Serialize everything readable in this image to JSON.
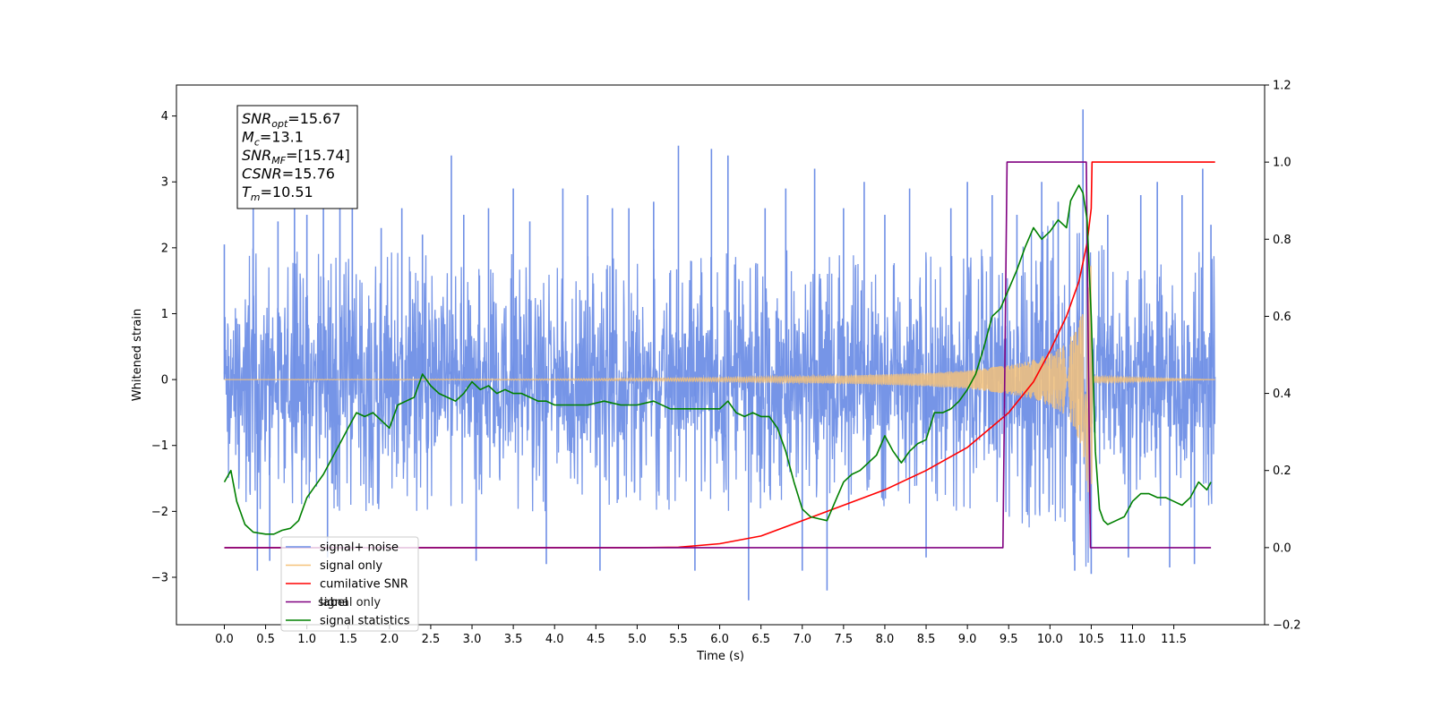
{
  "chart_data": {
    "type": "line",
    "xlabel": "Time (s)",
    "ylabel": "Whitened strain",
    "xlim": [
      -0.58,
      12.6
    ],
    "ylim": [
      -3.72,
      4.47
    ],
    "ylim_right": [
      -0.2,
      1.2
    ],
    "x_ticks": [
      0.0,
      0.5,
      1.0,
      1.5,
      2.0,
      2.5,
      3.0,
      3.5,
      4.0,
      4.5,
      5.0,
      5.5,
      6.0,
      6.5,
      7.0,
      7.5,
      8.0,
      8.5,
      9.0,
      9.5,
      10.0,
      10.5,
      11.0,
      11.5
    ],
    "x_tick_labels": [
      "0.0",
      "0.5",
      "1.0",
      "1.5",
      "2.0",
      "2.5",
      "3.0",
      "3.5",
      "4.0",
      "4.5",
      "5.0",
      "5.5",
      "6.0",
      "6.5",
      "7.0",
      "7.5",
      "8.0",
      "8.5",
      "9.0",
      "9.5",
      "10.0",
      "10.5",
      "11.0",
      "11.5"
    ],
    "y_ticks": [
      -3,
      -2,
      -1,
      0,
      1,
      2,
      3,
      4
    ],
    "y_tick_labels": [
      "−3",
      "−2",
      "−1",
      "0",
      "1",
      "2",
      "3",
      "4"
    ],
    "y_right_ticks": [
      -0.2,
      0.0,
      0.2,
      0.4,
      0.6,
      0.8,
      1.0,
      1.2
    ],
    "y_right_tick_labels": [
      "−0.2",
      "0.0",
      "0.2",
      "0.4",
      "0.6",
      "0.8",
      "1.0",
      "1.2"
    ],
    "grid": false,
    "legend_location": "lower-left",
    "legend": [
      {
        "label": "signal+ noise",
        "color": "#6f8fe6"
      },
      {
        "label": "signal only",
        "color": "#f5c27a"
      },
      {
        "label": "cumilative SNR",
        "color": "#ff0000"
      },
      {
        "label": "label",
        "color": "#800080"
      },
      {
        "label": "signal statistics",
        "color": "#008000"
      }
    ],
    "ghost_legend": [
      "signal only"
    ],
    "info_box": [
      {
        "var": "SNR",
        "sub": "opt",
        "value": "=15.67"
      },
      {
        "var": "M",
        "sub": "c",
        "value": "=13.1"
      },
      {
        "var": "SNR",
        "sub": "MF",
        "value": "=[15.74]"
      },
      {
        "var": "CSNR",
        "sub": "",
        "value": "=15.76"
      },
      {
        "var": "T",
        "sub": "m",
        "value": "=10.51"
      }
    ],
    "series": [
      {
        "name": "signal+ noise",
        "axis": "left",
        "color": "#6f8fe6",
        "x_range": [
          0.0,
          12.0
        ],
        "envelope": {
          "x": [
            0,
            9.0,
            9.5,
            10.0,
            10.3,
            10.45,
            10.5,
            12.0
          ],
          "upper": [
            1.6,
            1.6,
            1.7,
            1.9,
            2.2,
            2.6,
            1.7,
            1.6
          ],
          "lower": [
            -1.6,
            -1.6,
            -1.7,
            -1.9,
            -2.2,
            -2.6,
            -1.7,
            -1.6
          ]
        },
        "peaks": [
          {
            "x": 0.0,
            "y": 2.05
          },
          {
            "x": 0.35,
            "y": 2.6
          },
          {
            "x": 0.4,
            "y": -2.9
          },
          {
            "x": 0.55,
            "y": -2.75
          },
          {
            "x": 0.65,
            "y": 2.4
          },
          {
            "x": 0.85,
            "y": 2.65
          },
          {
            "x": 1.0,
            "y": 2.5
          },
          {
            "x": 1.2,
            "y": 2.8
          },
          {
            "x": 1.25,
            "y": -2.7
          },
          {
            "x": 1.4,
            "y": 2.7
          },
          {
            "x": 1.55,
            "y": 2.6
          },
          {
            "x": 1.9,
            "y": 2.3
          },
          {
            "x": 2.15,
            "y": 2.6
          },
          {
            "x": 2.4,
            "y": 2.2
          },
          {
            "x": 2.75,
            "y": 3.4
          },
          {
            "x": 2.9,
            "y": 2.5
          },
          {
            "x": 3.05,
            "y": -2.75
          },
          {
            "x": 3.2,
            "y": 2.6
          },
          {
            "x": 3.5,
            "y": 2.9
          },
          {
            "x": 3.7,
            "y": 2.4
          },
          {
            "x": 3.9,
            "y": -2.8
          },
          {
            "x": 4.1,
            "y": 2.9
          },
          {
            "x": 4.4,
            "y": 2.8
          },
          {
            "x": 4.55,
            "y": -2.9
          },
          {
            "x": 4.7,
            "y": 2.6
          },
          {
            "x": 4.9,
            "y": 2.6
          },
          {
            "x": 5.2,
            "y": 2.7
          },
          {
            "x": 5.5,
            "y": 3.55
          },
          {
            "x": 5.7,
            "y": -2.9
          },
          {
            "x": 5.9,
            "y": 3.5
          },
          {
            "x": 6.1,
            "y": 3.4
          },
          {
            "x": 6.35,
            "y": -3.35
          },
          {
            "x": 6.55,
            "y": 2.6
          },
          {
            "x": 6.8,
            "y": 2.9
          },
          {
            "x": 7.0,
            "y": -2.9
          },
          {
            "x": 7.15,
            "y": 3.2
          },
          {
            "x": 7.3,
            "y": -3.2
          },
          {
            "x": 7.5,
            "y": 2.6
          },
          {
            "x": 7.75,
            "y": 3.0
          },
          {
            "x": 8.0,
            "y": 2.5
          },
          {
            "x": 8.3,
            "y": 2.9
          },
          {
            "x": 8.5,
            "y": -2.7
          },
          {
            "x": 8.8,
            "y": 2.6
          },
          {
            "x": 9.0,
            "y": 3.0
          },
          {
            "x": 9.3,
            "y": 2.8
          },
          {
            "x": 9.6,
            "y": 2.5
          },
          {
            "x": 9.9,
            "y": 3.0
          },
          {
            "x": 10.1,
            "y": 2.7
          },
          {
            "x": 10.3,
            "y": -2.9
          },
          {
            "x": 10.4,
            "y": 4.1
          },
          {
            "x": 10.5,
            "y": -2.95
          },
          {
            "x": 10.7,
            "y": 2.5
          },
          {
            "x": 10.95,
            "y": -2.7
          },
          {
            "x": 11.1,
            "y": 2.8
          },
          {
            "x": 11.3,
            "y": 3.0
          },
          {
            "x": 11.45,
            "y": -2.85
          },
          {
            "x": 11.6,
            "y": 2.8
          },
          {
            "x": 11.75,
            "y": -2.8
          },
          {
            "x": 11.85,
            "y": 3.2
          },
          {
            "x": 11.95,
            "y": 2.35
          }
        ]
      },
      {
        "name": "signal only",
        "axis": "left",
        "color": "#f5c27a",
        "x_range": [
          0.0,
          12.0
        ],
        "envelope": {
          "x": [
            0,
            4.0,
            6.0,
            7.5,
            8.5,
            9.0,
            9.5,
            9.75,
            10.0,
            10.2,
            10.3,
            10.4,
            10.45,
            10.5,
            10.52,
            12.0
          ],
          "amp": [
            0.0,
            0.01,
            0.03,
            0.06,
            0.1,
            0.14,
            0.22,
            0.28,
            0.4,
            0.55,
            0.75,
            1.1,
            1.6,
            2.3,
            0.05,
            0.0
          ]
        }
      },
      {
        "name": "cumilative SNR",
        "axis": "right",
        "color": "#ff0000",
        "x": [
          0.0,
          5.0,
          5.5,
          6.0,
          6.5,
          7.0,
          7.5,
          8.0,
          8.5,
          9.0,
          9.5,
          9.8,
          10.0,
          10.2,
          10.35,
          10.45,
          10.5,
          10.51,
          12.0
        ],
        "y": [
          0.0,
          0.0,
          0.001,
          0.01,
          0.03,
          0.07,
          0.11,
          0.15,
          0.2,
          0.26,
          0.35,
          0.43,
          0.51,
          0.6,
          0.69,
          0.79,
          0.88,
          1.0,
          1.0
        ]
      },
      {
        "name": "label",
        "axis": "right",
        "color": "#800080",
        "x": [
          0.0,
          9.43,
          9.48,
          10.44,
          10.49,
          11.95
        ],
        "y": [
          0.0,
          0.0,
          1.0,
          1.0,
          0.0,
          0.0
        ]
      },
      {
        "name": "signal statistics",
        "axis": "right",
        "color": "#008000",
        "x": [
          0.0,
          0.08,
          0.15,
          0.25,
          0.35,
          0.5,
          0.6,
          0.7,
          0.8,
          0.9,
          1.0,
          1.1,
          1.2,
          1.3,
          1.4,
          1.5,
          1.6,
          1.7,
          1.8,
          1.9,
          2.0,
          2.1,
          2.2,
          2.3,
          2.4,
          2.5,
          2.6,
          2.7,
          2.8,
          2.9,
          3.0,
          3.1,
          3.2,
          3.3,
          3.4,
          3.5,
          3.6,
          3.7,
          3.8,
          3.9,
          4.0,
          4.2,
          4.4,
          4.6,
          4.8,
          5.0,
          5.2,
          5.4,
          5.6,
          5.8,
          6.0,
          6.1,
          6.2,
          6.3,
          6.4,
          6.5,
          6.6,
          6.7,
          6.8,
          6.9,
          7.0,
          7.1,
          7.2,
          7.3,
          7.4,
          7.5,
          7.6,
          7.7,
          7.8,
          7.9,
          8.0,
          8.1,
          8.2,
          8.3,
          8.4,
          8.5,
          8.6,
          8.7,
          8.8,
          8.9,
          9.0,
          9.1,
          9.2,
          9.3,
          9.4,
          9.5,
          9.6,
          9.7,
          9.8,
          9.9,
          10.0,
          10.1,
          10.2,
          10.25,
          10.3,
          10.35,
          10.4,
          10.45,
          10.5,
          10.55,
          10.6,
          10.65,
          10.7,
          10.8,
          10.9,
          11.0,
          11.1,
          11.2,
          11.3,
          11.4,
          11.5,
          11.6,
          11.7,
          11.8,
          11.9,
          11.95
        ],
        "y": [
          0.17,
          0.2,
          0.12,
          0.06,
          0.04,
          0.035,
          0.035,
          0.045,
          0.05,
          0.07,
          0.13,
          0.16,
          0.19,
          0.23,
          0.27,
          0.31,
          0.35,
          0.34,
          0.35,
          0.33,
          0.31,
          0.37,
          0.38,
          0.39,
          0.45,
          0.42,
          0.4,
          0.39,
          0.38,
          0.4,
          0.43,
          0.41,
          0.42,
          0.4,
          0.41,
          0.4,
          0.4,
          0.39,
          0.38,
          0.38,
          0.37,
          0.37,
          0.37,
          0.38,
          0.37,
          0.37,
          0.38,
          0.36,
          0.36,
          0.36,
          0.36,
          0.38,
          0.35,
          0.34,
          0.35,
          0.34,
          0.34,
          0.31,
          0.25,
          0.17,
          0.1,
          0.08,
          0.075,
          0.07,
          0.12,
          0.17,
          0.19,
          0.2,
          0.22,
          0.24,
          0.29,
          0.25,
          0.22,
          0.25,
          0.27,
          0.28,
          0.35,
          0.35,
          0.36,
          0.38,
          0.41,
          0.45,
          0.52,
          0.6,
          0.62,
          0.67,
          0.72,
          0.78,
          0.83,
          0.8,
          0.82,
          0.85,
          0.83,
          0.9,
          0.92,
          0.94,
          0.92,
          0.85,
          0.6,
          0.25,
          0.1,
          0.07,
          0.06,
          0.07,
          0.08,
          0.12,
          0.14,
          0.14,
          0.13,
          0.13,
          0.12,
          0.11,
          0.13,
          0.17,
          0.15,
          0.17
        ]
      }
    ]
  }
}
